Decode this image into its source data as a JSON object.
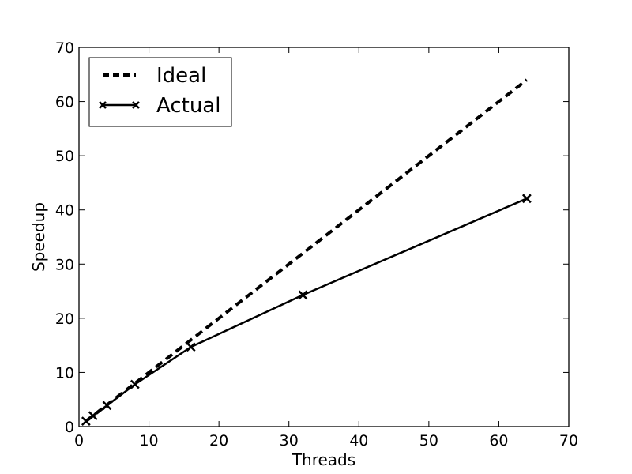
{
  "chart_data": {
    "type": "line",
    "title": "",
    "xlabel": "Threads",
    "ylabel": "Speedup",
    "xlim": [
      0,
      70
    ],
    "ylim": [
      0,
      70
    ],
    "xticks": [
      0,
      10,
      20,
      30,
      40,
      50,
      60,
      70
    ],
    "yticks": [
      0,
      10,
      20,
      30,
      40,
      50,
      60,
      70
    ],
    "grid": false,
    "legend_position": "top-left",
    "series": [
      {
        "name": "Ideal",
        "style": "dashed",
        "marker": "none",
        "color": "#000000",
        "x": [
          1,
          64
        ],
        "y": [
          1,
          64
        ]
      },
      {
        "name": "Actual",
        "style": "solid",
        "marker": "x",
        "color": "#000000",
        "x": [
          1,
          2,
          4,
          8,
          16,
          32,
          64
        ],
        "y": [
          1.0,
          2.0,
          3.9,
          7.8,
          14.7,
          24.3,
          42.1
        ]
      }
    ]
  }
}
